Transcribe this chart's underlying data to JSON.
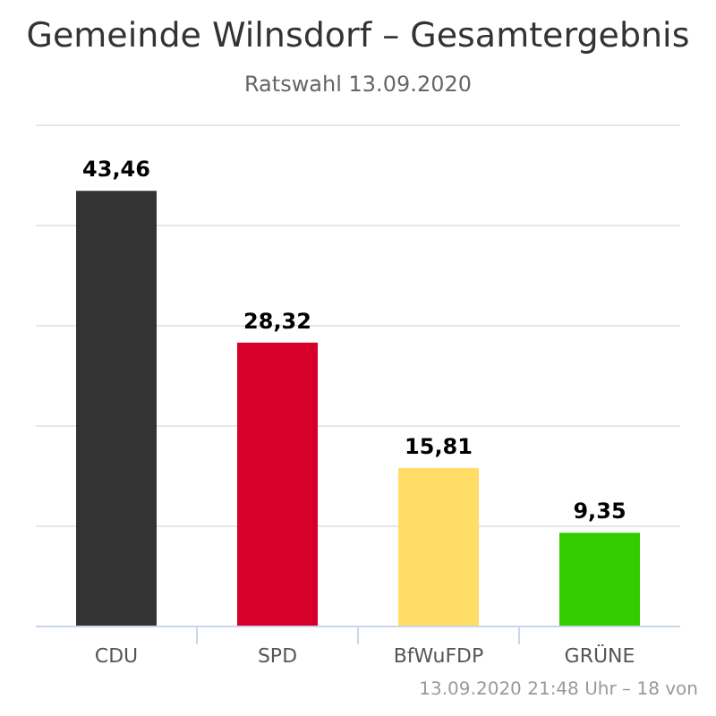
{
  "chart_data": {
    "type": "bar",
    "title": "Gemeinde Wilnsdorf – Gesamtergebnis",
    "subtitle": "Ratswahl 13.09.2020",
    "categories": [
      "CDU",
      "SPD",
      "BfWuFDP",
      "GRÜNE"
    ],
    "values": [
      43.46,
      28.32,
      15.81,
      9.35
    ],
    "colors": [
      "#333333",
      "#d7002a",
      "#ffdd66",
      "#33cc00"
    ],
    "value_labels": [
      "43,46",
      "28,32",
      "15,81",
      "9,35"
    ],
    "ylim": [
      0,
      50
    ],
    "yticks": [
      {
        "value": 0,
        "label": null
      },
      {
        "value": 10,
        "label": null
      },
      {
        "value": 20,
        "label": null
      },
      {
        "value": 30,
        "label": null
      },
      {
        "value": 40,
        "label": null
      },
      {
        "value": 50,
        "label": null
      }
    ],
    "tick_labels": "x",
    "grid": "y",
    "annotations": [
      "13.09.2020 21:48 Uhr – 18 von"
    ]
  }
}
